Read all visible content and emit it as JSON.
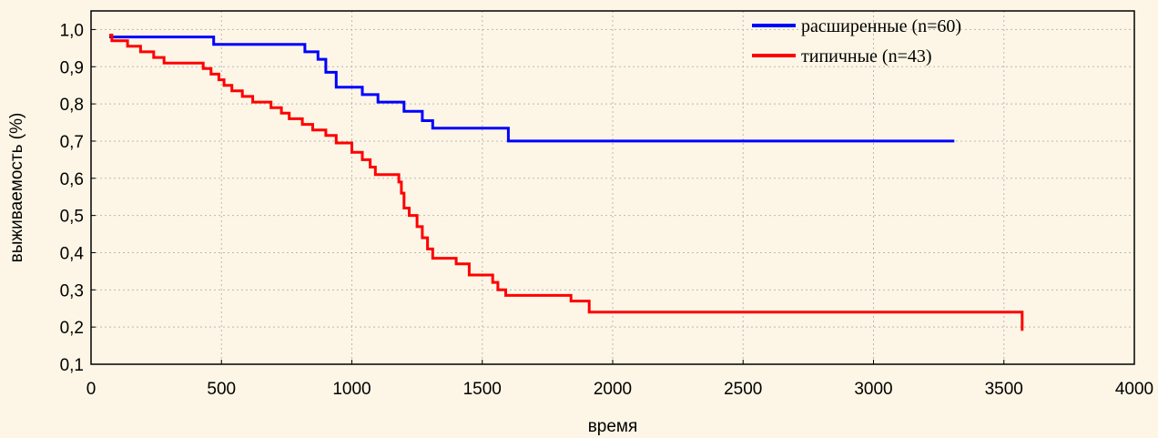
{
  "chart_data": {
    "type": "line",
    "title": "",
    "xlabel": "время",
    "ylabel": "выживаемость (%)",
    "xlim": [
      0,
      4000
    ],
    "ylim": [
      0.1,
      1.05
    ],
    "xticks": [
      0,
      500,
      1000,
      1500,
      2000,
      2500,
      3000,
      3500,
      4000
    ],
    "xtick_labels": [
      "0",
      "500",
      "1000",
      "1500",
      "2000",
      "2500",
      "3000",
      "3500",
      "4000"
    ],
    "yticks": [
      0.1,
      0.2,
      0.3,
      0.4,
      0.5,
      0.6,
      0.7,
      0.8,
      0.9,
      1.0
    ],
    "ytick_labels": [
      "0,1",
      "0,2",
      "0,3",
      "0,4",
      "0,5",
      "0,6",
      "0,7",
      "0,8",
      "0,9",
      "1,0"
    ],
    "grid": true,
    "legend_position": "top-right",
    "series": [
      {
        "name": "расширенные (n=60)",
        "color": "#0000ff",
        "step": true,
        "x": [
          70,
          470,
          820,
          870,
          900,
          940,
          1040,
          1100,
          1200,
          1270,
          1310,
          1600,
          3310
        ],
        "y": [
          0.98,
          0.96,
          0.94,
          0.92,
          0.885,
          0.845,
          0.825,
          0.805,
          0.78,
          0.755,
          0.735,
          0.7,
          0.7
        ]
      },
      {
        "name": "типичные (n=43)",
        "color": "#ff0000",
        "step": true,
        "x": [
          70,
          80,
          140,
          190,
          240,
          280,
          430,
          460,
          490,
          510,
          540,
          580,
          620,
          690,
          730,
          760,
          810,
          850,
          900,
          940,
          1000,
          1040,
          1070,
          1090,
          1180,
          1190,
          1200,
          1220,
          1250,
          1270,
          1290,
          1310,
          1400,
          1450,
          1540,
          1560,
          1590,
          1840,
          1910,
          3570
        ],
        "y": [
          0.985,
          0.97,
          0.955,
          0.94,
          0.925,
          0.91,
          0.895,
          0.88,
          0.865,
          0.85,
          0.835,
          0.82,
          0.805,
          0.79,
          0.775,
          0.76,
          0.745,
          0.73,
          0.715,
          0.695,
          0.67,
          0.65,
          0.63,
          0.61,
          0.59,
          0.56,
          0.52,
          0.5,
          0.47,
          0.44,
          0.41,
          0.385,
          0.37,
          0.34,
          0.32,
          0.3,
          0.285,
          0.27,
          0.24,
          0.19
        ]
      }
    ]
  }
}
